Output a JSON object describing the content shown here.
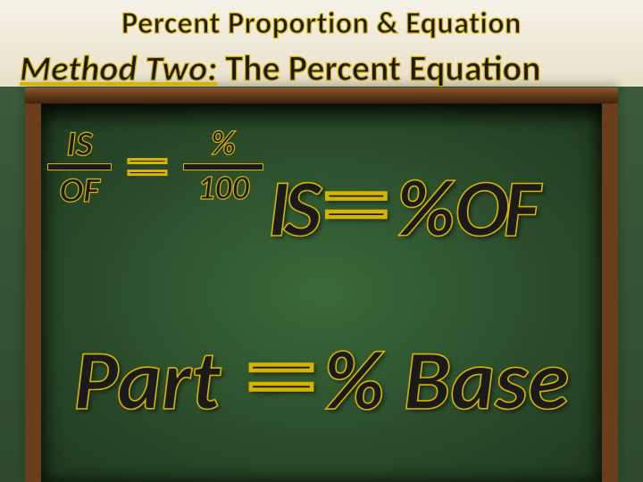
{
  "background": {
    "wall_top_color": "#f5f2e8",
    "board_color": "#2d4a2d",
    "frame_color": "#6a3e1c"
  },
  "title": "Percent Proportion & Equation",
  "method": {
    "prefix": "Method Two:",
    "suffix": " The Percent Equation"
  },
  "fraction": {
    "left_num": "IS",
    "left_den": "OF",
    "eq": "＝",
    "right_num": "%",
    "right_den": "100"
  },
  "equation1": {
    "is": "IS",
    "eq": "＝",
    "percent": "%",
    "of": "OF"
  },
  "equation2": {
    "part": "Part",
    "eq": "＝",
    "percent": "%",
    "base": "Base"
  },
  "styling": {
    "text_fill_color": "#1a1a1a",
    "text_stroke_color": "#d6b400",
    "title_fontsize_pt": 26,
    "method_fontsize_pt": 30,
    "fraction_fontsize_pt": 30,
    "eq1_fontsize_pt": 68,
    "eq2_fontsize_pt": 70,
    "font_style": "bold italic",
    "font_family": "Calibri",
    "text_shadow": "rgba(0,0,0,0.45)"
  }
}
